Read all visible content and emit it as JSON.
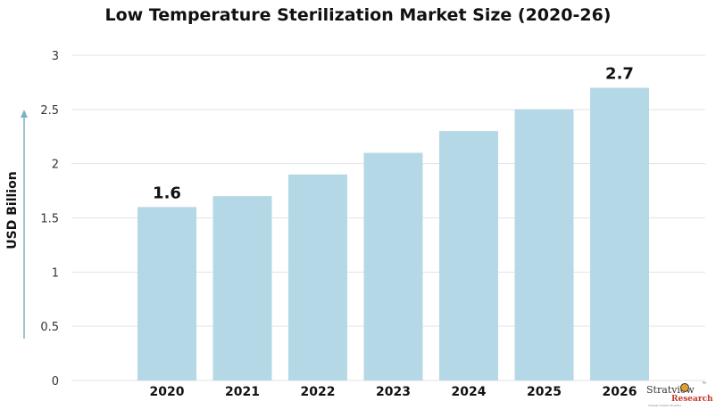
{
  "chart_data": {
    "type": "bar",
    "title": "Low Temperature Sterilization Market Size (2020-26)",
    "ylabel": "USD Billion",
    "xlabel": "",
    "categories": [
      "2020",
      "2021",
      "2022",
      "2023",
      "2024",
      "2025",
      "2026"
    ],
    "values": [
      1.6,
      1.7,
      1.9,
      2.1,
      2.3,
      2.5,
      2.7
    ],
    "data_labels": [
      "1.6",
      "",
      "",
      "",
      "",
      "",
      "2.7"
    ],
    "ylim": [
      0,
      3
    ],
    "yticks": [
      "0",
      "0.5",
      "1",
      "1.5",
      "2",
      "2.5",
      "3"
    ],
    "grid": true,
    "legend": "none",
    "colors": {
      "bar": "#b5d8e6",
      "grid": "#e3e3e3",
      "axis_arrow": "#7ab3c4",
      "text": "#111111",
      "tick_text": "#333333"
    }
  },
  "logo": {
    "brand_line1": "Stratview",
    "brand_line2": "Research",
    "tm": "™",
    "tagline": "Strategic Insights Simplified"
  }
}
